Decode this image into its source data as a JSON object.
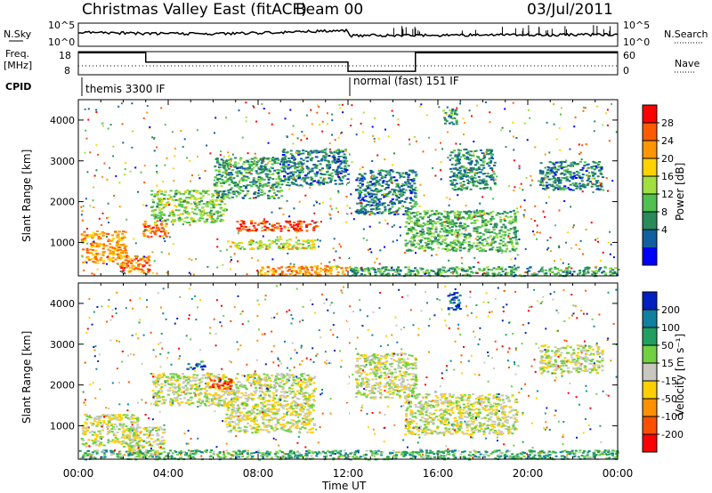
{
  "header": {
    "title": "Christmas Valley East (fitACF)",
    "beam": "Beam 00",
    "date": "03/Jul/2011"
  },
  "status_panels": {
    "nsky_label": "N.Sky",
    "nsearch_label": "N.Search",
    "freq_label_line1": "Freq.",
    "freq_label_line2": "[MHz]",
    "nave_label": "Nave",
    "cpid_label": "CPID",
    "noise_ticks": [
      "10^5",
      "10^0"
    ],
    "freq_ticks": [
      "18",
      "8"
    ],
    "nave_ticks": [
      "60",
      "0"
    ],
    "cpid_segments": [
      {
        "label": "themis 3300 IF",
        "start_hour": 0,
        "end_hour": 12
      },
      {
        "label": "normal (fast) 151 IF",
        "start_hour": 12,
        "end_hour": 24
      }
    ],
    "freq_steps": [
      {
        "start_hour": 0,
        "end_hour": 3,
        "level": 0.95
      },
      {
        "start_hour": 3,
        "end_hour": 12,
        "level": 0.55
      },
      {
        "start_hour": 12,
        "end_hour": 15,
        "level": 0.15
      },
      {
        "start_hour": 15,
        "end_hour": 24,
        "level": 0.95
      }
    ]
  },
  "chart_data": [
    {
      "type": "heatmap",
      "name": "power",
      "ylabel": "Slant Range [km]",
      "xlim": [
        0,
        24
      ],
      "ylim": [
        180,
        4500
      ],
      "yticks": [
        1000,
        2000,
        3000,
        4000
      ],
      "colorbar": {
        "label": "Power [dB]",
        "ticks": [
          "28",
          "24",
          "20",
          "16",
          "12",
          "8",
          "4"
        ],
        "colors": [
          "#ff0000",
          "#ff5a00",
          "#ff9600",
          "#ffd200",
          "#a0e040",
          "#50c050",
          "#2a8a5a",
          "#1060a0",
          "#0000ff"
        ]
      },
      "regions": [
        {
          "x0": 0.1,
          "x1": 2.1,
          "y0": 500,
          "y1": 1300,
          "level": 0.75
        },
        {
          "x0": 1.8,
          "x1": 3.2,
          "y0": 250,
          "y1": 700,
          "level": 0.8
        },
        {
          "x0": 2.8,
          "x1": 3.9,
          "y0": 1150,
          "y1": 1550,
          "level": 0.82
        },
        {
          "x0": 3.2,
          "x1": 6.5,
          "y0": 1500,
          "y1": 2300,
          "level": 0.45
        },
        {
          "x0": 7.0,
          "x1": 10.6,
          "y0": 1300,
          "y1": 1550,
          "level": 0.92
        },
        {
          "x0": 6.6,
          "x1": 10.5,
          "y0": 850,
          "y1": 1100,
          "level": 0.55
        },
        {
          "x0": 8.0,
          "x1": 12.0,
          "y0": 200,
          "y1": 450,
          "level": 0.75
        },
        {
          "x0": 6.0,
          "x1": 9.0,
          "y0": 2100,
          "y1": 3100,
          "level": 0.3
        },
        {
          "x0": 9.0,
          "x1": 12.0,
          "y0": 2400,
          "y1": 3300,
          "level": 0.2
        },
        {
          "x0": 12.3,
          "x1": 15.0,
          "y0": 1700,
          "y1": 2800,
          "level": 0.2
        },
        {
          "x0": 14.5,
          "x1": 19.5,
          "y0": 800,
          "y1": 1800,
          "level": 0.35
        },
        {
          "x0": 12.0,
          "x1": 24.0,
          "y0": 190,
          "y1": 420,
          "level": 0.3
        },
        {
          "x0": 16.5,
          "x1": 18.5,
          "y0": 2300,
          "y1": 3300,
          "level": 0.25
        },
        {
          "x0": 20.5,
          "x1": 23.3,
          "y0": 2300,
          "y1": 3000,
          "level": 0.2
        },
        {
          "x0": 16.2,
          "x1": 16.8,
          "y0": 3900,
          "y1": 4300,
          "level": 0.3
        }
      ]
    },
    {
      "type": "heatmap",
      "name": "velocity",
      "ylabel": "Slant Range [km]",
      "xlabel": "Time UT",
      "xlim": [
        0,
        24
      ],
      "ylim": [
        180,
        4500
      ],
      "yticks": [
        1000,
        2000,
        3000,
        4000
      ],
      "xticks": [
        "00:00",
        "04:00",
        "08:00",
        "12:00",
        "16:00",
        "20:00",
        "00:00"
      ],
      "colorbar": {
        "label": "Velocity [m s⁻¹]",
        "ticks": [
          "200",
          "100",
          "50",
          "15",
          "-15",
          "-50",
          "-100",
          "-200"
        ],
        "colors": [
          "#0020c0",
          "#1080a0",
          "#20a060",
          "#70d040",
          "#c8c8c0",
          "#ffd000",
          "#ff9000",
          "#ff5000",
          "#ff0000"
        ]
      },
      "regions": [
        {
          "x0": 0.1,
          "x1": 2.6,
          "y0": 500,
          "y1": 1300,
          "level": 0.5
        },
        {
          "x0": 2.2,
          "x1": 3.8,
          "y0": 250,
          "y1": 1000,
          "level": 0.5
        },
        {
          "x0": 3.2,
          "x1": 10.5,
          "y0": 1500,
          "y1": 2300,
          "level": 0.5
        },
        {
          "x0": 6.5,
          "x1": 10.5,
          "y0": 850,
          "y1": 1550,
          "level": 0.5
        },
        {
          "x0": 5.8,
          "x1": 6.8,
          "y0": 1900,
          "y1": 2200,
          "level": 0.1
        },
        {
          "x0": 4.8,
          "x1": 5.6,
          "y0": 2400,
          "y1": 2600,
          "level": 0.9
        },
        {
          "x0": 12.3,
          "x1": 15.0,
          "y0": 1700,
          "y1": 2800,
          "level": 0.5
        },
        {
          "x0": 14.5,
          "x1": 19.5,
          "y0": 800,
          "y1": 1800,
          "level": 0.5
        },
        {
          "x0": 0.0,
          "x1": 24.0,
          "y0": 190,
          "y1": 420,
          "level": 0.7
        },
        {
          "x0": 16.4,
          "x1": 17.0,
          "y0": 3850,
          "y1": 4300,
          "level": 0.95
        },
        {
          "x0": 20.5,
          "x1": 23.3,
          "y0": 2300,
          "y1": 3000,
          "level": 0.5
        }
      ]
    }
  ]
}
